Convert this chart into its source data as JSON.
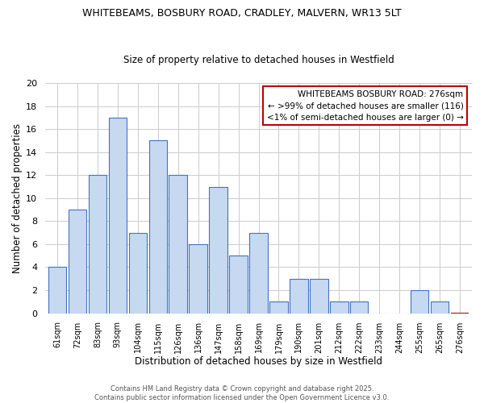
{
  "title": "WHITEBEAMS, BOSBURY ROAD, CRADLEY, MALVERN, WR13 5LT",
  "subtitle": "Size of property relative to detached houses in Westfield",
  "xlabel": "Distribution of detached houses by size in Westfield",
  "ylabel": "Number of detached properties",
  "categories": [
    "61sqm",
    "72sqm",
    "83sqm",
    "93sqm",
    "104sqm",
    "115sqm",
    "126sqm",
    "136sqm",
    "147sqm",
    "158sqm",
    "169sqm",
    "179sqm",
    "190sqm",
    "201sqm",
    "212sqm",
    "222sqm",
    "233sqm",
    "244sqm",
    "255sqm",
    "265sqm",
    "276sqm"
  ],
  "values": [
    4,
    9,
    12,
    17,
    7,
    15,
    12,
    6,
    11,
    5,
    7,
    1,
    3,
    3,
    1,
    1,
    0,
    0,
    2,
    1,
    0
  ],
  "bar_color": "#c6d9f1",
  "bar_edge_color": "#4472c4",
  "highlight_bar_index": 20,
  "highlight_bar_edge_color": "#c00000",
  "annotation_text_line1": "WHITEBEAMS BOSBURY ROAD: 276sqm",
  "annotation_text_line2": "← >99% of detached houses are smaller (116)",
  "annotation_text_line3": "<1% of semi-detached houses are larger (0) →",
  "annotation_box_edge_color": "#c00000",
  "ylim": [
    0,
    20
  ],
  "yticks": [
    0,
    2,
    4,
    6,
    8,
    10,
    12,
    14,
    16,
    18,
    20
  ],
  "footer_line1": "Contains HM Land Registry data © Crown copyright and database right 2025.",
  "footer_line2": "Contains public sector information licensed under the Open Government Licence v3.0.",
  "grid_color": "#cccccc",
  "background_color": "#ffffff",
  "title_fontsize": 9,
  "subtitle_fontsize": 8.5,
  "xlabel_fontsize": 8.5,
  "ylabel_fontsize": 8.5,
  "annotation_fontsize": 7.5,
  "footer_fontsize": 6.0
}
